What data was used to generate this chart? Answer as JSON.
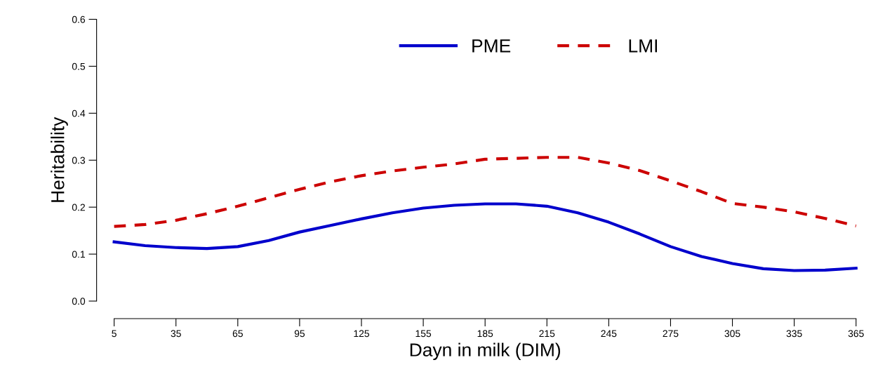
{
  "chart_data": {
    "type": "line",
    "xlabel": "Dayn in milk (DIM)",
    "ylabel": "Heritability",
    "x": [
      5,
      20,
      35,
      50,
      65,
      80,
      95,
      110,
      125,
      140,
      155,
      170,
      185,
      200,
      215,
      230,
      245,
      260,
      275,
      290,
      305,
      320,
      335,
      350,
      365
    ],
    "series": [
      {
        "name": "PME",
        "color": "#0000cc",
        "line_style": "solid",
        "values": [
          0.126,
          0.118,
          0.114,
          0.112,
          0.116,
          0.129,
          0.147,
          0.161,
          0.175,
          0.188,
          0.198,
          0.204,
          0.207,
          0.207,
          0.202,
          0.188,
          0.168,
          0.143,
          0.116,
          0.095,
          0.08,
          0.069,
          0.065,
          0.066,
          0.07
        ]
      },
      {
        "name": "LMI",
        "color": "#cc0000",
        "line_style": "dashed",
        "values": [
          0.159,
          0.163,
          0.172,
          0.186,
          0.202,
          0.22,
          0.238,
          0.254,
          0.267,
          0.277,
          0.285,
          0.292,
          0.302,
          0.304,
          0.306,
          0.306,
          0.294,
          0.278,
          0.256,
          0.233,
          0.208,
          0.2,
          0.19,
          0.176,
          0.16
        ]
      }
    ],
    "xlim": [
      5,
      365
    ],
    "ylim": [
      0,
      0.6
    ],
    "xticks": [
      5,
      35,
      65,
      95,
      125,
      155,
      185,
      215,
      245,
      275,
      305,
      335,
      365
    ],
    "yticks": [
      {
        "value": 0,
        "label": "0.0"
      },
      {
        "value": 0.1,
        "label": "0.1"
      },
      {
        "value": 0.2,
        "label": "0.2"
      },
      {
        "value": 0.3,
        "label": "0.3"
      },
      {
        "value": 0.4,
        "label": "0.4"
      },
      {
        "value": 0.5,
        "label": "0.5"
      },
      {
        "value": 0.6,
        "label": "0.6"
      }
    ],
    "legend": "top",
    "grid": false
  }
}
